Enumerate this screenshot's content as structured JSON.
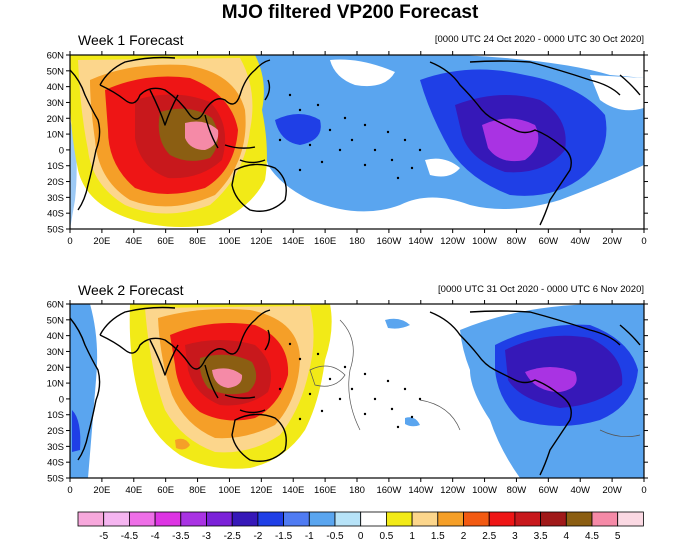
{
  "title": "MJO filtered VP200 Forecast",
  "panels": [
    {
      "title": "Week 1 Forecast",
      "range": "[0000 UTC 24 Oct 2020 - 0000 UTC 30 Oct 2020]"
    },
    {
      "title": "Week 2 Forecast",
      "range": "[0000 UTC 31 Oct 2020 - 0000 UTC 6 Nov 2020]"
    }
  ],
  "lat_ticks": [
    "60N",
    "50N",
    "40N",
    "30N",
    "20N",
    "10N",
    "0",
    "10S",
    "20S",
    "30S",
    "40S",
    "50S"
  ],
  "lon_ticks": [
    "0",
    "20E",
    "40E",
    "60E",
    "80E",
    "100E",
    "120E",
    "140E",
    "160E",
    "180",
    "160W",
    "140W",
    "120W",
    "100W",
    "80W",
    "60W",
    "40W",
    "20W",
    "0"
  ],
  "colorbar": {
    "labels": [
      "-5",
      "-4.5",
      "-4",
      "-3.5",
      "-3",
      "-2.5",
      "-2",
      "-1.5",
      "-1",
      "-0.5",
      "0",
      "0.5",
      "1",
      "1.5",
      "2",
      "2.5",
      "3",
      "3.5",
      "4",
      "4.5",
      "5"
    ],
    "colors": [
      "#f7a8dc",
      "#f5b5f0",
      "#ee6fe7",
      "#dd34e3",
      "#a933e3",
      "#7b22d8",
      "#3618b8",
      "#1f3fe6",
      "#4f7bf2",
      "#5aa5ef",
      "#b7e3f8",
      "#ffffff",
      "#f2ea17",
      "#fcd68c",
      "#f59f28",
      "#f25a12",
      "#ee1515",
      "#c8181c",
      "#a01919",
      "#8b5e12",
      "#f58aa7",
      "#fbd9e3"
    ]
  },
  "map_colors": {
    "ocean": "#ffffff",
    "neg_light": "#5aa5ef",
    "neg_mid": "#1f3fe6",
    "neg_dark": "#3618b8",
    "neg_purple": "#a933e3",
    "pos_yellow": "#f2ea17",
    "pos_peach": "#fcd68c",
    "pos_orange": "#f59f28",
    "pos_red": "#ee1515",
    "pos_dark": "#a01919",
    "pos_brown": "#8b5e12",
    "pos_pink": "#f58aa7"
  }
}
